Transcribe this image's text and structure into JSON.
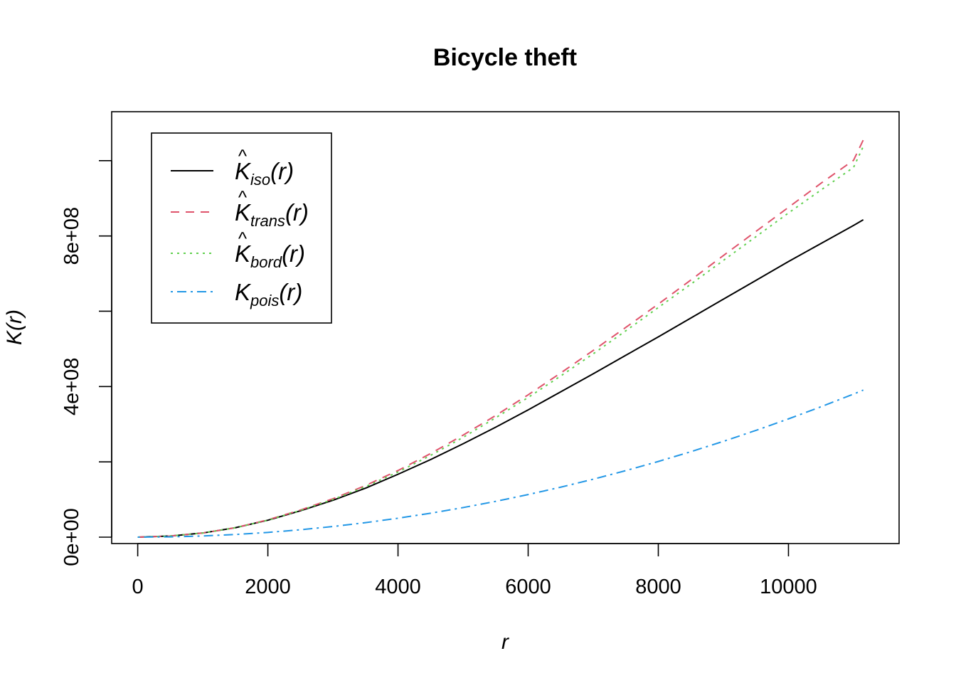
{
  "chart_data": {
    "type": "line",
    "title": "Bicycle theft",
    "xlabel": "r",
    "ylabel": "K(r)",
    "xlim": [
      -400,
      11700
    ],
    "ylim": [
      -17000000,
      1130000000
    ],
    "x_ticks": [
      0,
      2000,
      4000,
      6000,
      8000,
      10000
    ],
    "x_tick_labels": [
      "0",
      "2000",
      "4000",
      "6000",
      "8000",
      "10000"
    ],
    "y_ticks": [
      0,
      200000000,
      400000000,
      600000000,
      800000000,
      1000000000
    ],
    "y_tick_labels": [
      "0e+00",
      "",
      "4e+08",
      "",
      "8e+08",
      ""
    ],
    "grid": false,
    "legend_position": "top-left",
    "x": [
      0,
      500,
      1000,
      1500,
      2000,
      2500,
      3000,
      3500,
      4000,
      4500,
      5000,
      5500,
      6000,
      6500,
      7000,
      7500,
      8000,
      8500,
      9000,
      9500,
      10000,
      10500,
      11000,
      11150
    ],
    "series": [
      {
        "id": "iso",
        "sym": "K",
        "hat": true,
        "sub": "iso",
        "color": "#000000",
        "dash": "",
        "values": [
          0,
          3000000,
          11000000,
          25000000,
          45000000,
          70000000,
          98000000,
          130000000,
          167000000,
          206000000,
          248000000,
          292000000,
          338000000,
          386000000,
          434000000,
          483000000,
          532000000,
          582000000,
          632000000,
          682000000,
          732000000,
          780000000,
          828000000,
          843000000
        ]
      },
      {
        "id": "trans",
        "sym": "K",
        "hat": true,
        "sub": "trans",
        "color": "#DF536B",
        "dash": "12,9",
        "values": [
          0,
          3000000,
          11000000,
          25000000,
          46000000,
          72000000,
          102000000,
          137000000,
          177000000,
          222000000,
          271000000,
          323000000,
          378000000,
          436000000,
          496000000,
          557000000,
          619000000,
          683000000,
          748000000,
          812000000,
          876000000,
          940000000,
          1001000000,
          1055000000
        ]
      },
      {
        "id": "bord",
        "sym": "K",
        "hat": true,
        "sub": "bord",
        "color": "#61D04F",
        "dash": "3,6",
        "values": [
          0,
          3000000,
          11000000,
          25000000,
          45000000,
          71000000,
          100000000,
          134000000,
          173000000,
          217000000,
          265000000,
          317000000,
          371000000,
          428000000,
          487000000,
          548000000,
          610000000,
          672000000,
          735000000,
          798000000,
          861000000,
          922000000,
          982000000,
          1038000000
        ]
      },
      {
        "id": "pois",
        "sym": "K",
        "hat": false,
        "sub": "pois",
        "color": "#2297E6",
        "dash": "3,6,13,6",
        "values": [
          0,
          785000,
          3140000,
          7070000,
          12570000,
          19630000,
          28270000,
          38480000,
          50270000,
          63620000,
          78540000,
          95030000,
          113100000,
          132730000,
          153940000,
          176710000,
          201060000,
          226980000,
          254470000,
          283530000,
          314160000,
          346360000,
          380130000,
          390560000
        ]
      }
    ]
  }
}
